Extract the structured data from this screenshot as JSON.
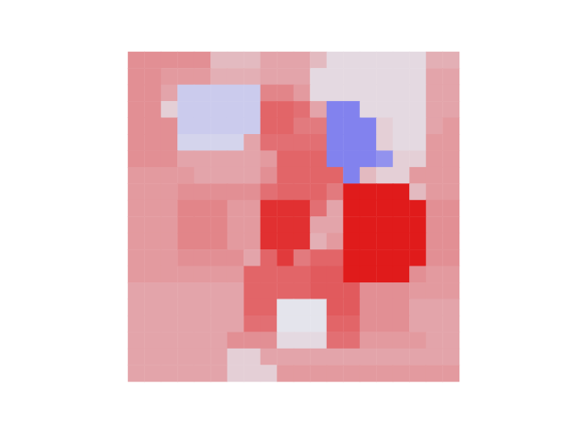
{
  "chart_data": {
    "type": "heatmap",
    "tick_labels": false,
    "grid": false,
    "zlim": [
      -1,
      1
    ],
    "cells": [
      [
        0.4,
        0.4,
        0.4,
        0.4,
        0.4,
        0.2,
        0.2,
        0.2,
        0.3,
        0.3,
        0.3,
        0.2,
        0.05,
        0.05,
        0.05,
        0.05,
        0.05,
        0.05,
        0.25,
        0.25
      ],
      [
        0.4,
        0.4,
        0.35,
        0.35,
        0.35,
        0.25,
        0.25,
        0.25,
        0.3,
        0.3,
        0.3,
        0.05,
        0.05,
        0.05,
        0.05,
        0.05,
        0.05,
        0.05,
        0.3,
        0.3
      ],
      [
        0.4,
        0.4,
        0.3,
        -0.15,
        -0.15,
        -0.15,
        -0.15,
        -0.15,
        0.45,
        0.45,
        0.35,
        0.05,
        0.05,
        0.05,
        0.05,
        0.05,
        0.05,
        0.05,
        0.3,
        0.3
      ],
      [
        0.4,
        0.4,
        0.1,
        -0.15,
        -0.15,
        -0.15,
        -0.15,
        -0.15,
        0.6,
        0.6,
        0.55,
        0.3,
        -0.6,
        -0.6,
        0.05,
        0.05,
        0.05,
        0.05,
        0.3,
        0.3
      ],
      [
        0.4,
        0.4,
        0.4,
        -0.15,
        -0.15,
        -0.15,
        -0.15,
        -0.15,
        0.6,
        0.6,
        0.5,
        0.5,
        -0.6,
        -0.6,
        -0.6,
        0.1,
        0.05,
        0.05,
        0.3,
        0.35
      ],
      [
        0.4,
        0.4,
        0.4,
        -0.1,
        -0.1,
        -0.1,
        -0.1,
        0.3,
        0.55,
        0.55,
        0.55,
        0.55,
        -0.6,
        -0.6,
        -0.6,
        0.1,
        0.05,
        0.05,
        0.35,
        0.35
      ],
      [
        0.4,
        0.4,
        0.4,
        0.3,
        0.3,
        0.3,
        0.3,
        0.3,
        0.35,
        0.6,
        0.6,
        0.6,
        -0.6,
        -0.6,
        -0.6,
        -0.5,
        0.1,
        0.1,
        0.35,
        0.35
      ],
      [
        0.35,
        0.35,
        0.35,
        0.35,
        0.3,
        0.3,
        0.3,
        0.3,
        0.4,
        0.6,
        0.6,
        0.6,
        0.6,
        -0.6,
        0.2,
        0.1,
        0.1,
        0.35,
        0.35,
        0.35
      ],
      [
        0.35,
        0.35,
        0.35,
        0.4,
        0.4,
        0.4,
        0.4,
        0.4,
        0.55,
        0.6,
        0.6,
        0.6,
        0.5,
        0.95,
        0.95,
        0.95,
        0.95,
        0.2,
        0.35,
        0.35
      ],
      [
        0.35,
        0.35,
        0.35,
        0.45,
        0.45,
        0.45,
        0.35,
        0.35,
        0.85,
        0.85,
        0.85,
        0.55,
        0.3,
        0.95,
        0.95,
        0.95,
        0.95,
        0.95,
        0.4,
        0.4
      ],
      [
        0.35,
        0.35,
        0.35,
        0.45,
        0.45,
        0.45,
        0.35,
        0.35,
        0.85,
        0.85,
        0.85,
        0.3,
        0.3,
        0.95,
        0.95,
        0.95,
        0.95,
        0.95,
        0.4,
        0.4
      ],
      [
        0.35,
        0.35,
        0.35,
        0.45,
        0.45,
        0.45,
        0.35,
        0.35,
        0.85,
        0.85,
        0.85,
        0.25,
        0.35,
        0.95,
        0.95,
        0.95,
        0.95,
        0.95,
        0.4,
        0.4
      ],
      [
        0.35,
        0.35,
        0.35,
        0.4,
        0.4,
        0.4,
        0.4,
        0.3,
        0.6,
        0.8,
        0.5,
        0.6,
        0.6,
        0.95,
        0.95,
        0.95,
        0.95,
        0.95,
        0.4,
        0.4
      ],
      [
        0.35,
        0.35,
        0.35,
        0.35,
        0.35,
        0.35,
        0.35,
        0.6,
        0.6,
        0.6,
        0.6,
        0.65,
        0.65,
        0.95,
        0.95,
        0.95,
        0.95,
        0.4,
        0.35,
        0.35
      ],
      [
        0.3,
        0.3,
        0.3,
        0.3,
        0.3,
        0.3,
        0.3,
        0.6,
        0.6,
        0.6,
        0.6,
        0.65,
        0.65,
        0.65,
        0.4,
        0.4,
        0.4,
        0.35,
        0.35,
        0.35
      ],
      [
        0.3,
        0.3,
        0.3,
        0.3,
        0.3,
        0.3,
        0.3,
        0.6,
        0.6,
        0.0,
        0.0,
        0.0,
        0.65,
        0.65,
        0.4,
        0.4,
        0.4,
        0.3,
        0.3,
        0.3
      ],
      [
        0.3,
        0.3,
        0.3,
        0.3,
        0.3,
        0.3,
        0.3,
        0.55,
        0.55,
        0.0,
        0.0,
        0.0,
        0.6,
        0.6,
        0.4,
        0.4,
        0.4,
        0.3,
        0.3,
        0.3
      ],
      [
        0.3,
        0.3,
        0.3,
        0.3,
        0.3,
        0.3,
        0.4,
        0.4,
        0.4,
        0.05,
        0.05,
        0.05,
        0.55,
        0.55,
        0.35,
        0.35,
        0.35,
        0.35,
        0.3,
        0.3
      ],
      [
        0.3,
        0.3,
        0.3,
        0.3,
        0.3,
        0.3,
        0.1,
        0.1,
        0.3,
        0.3,
        0.3,
        0.3,
        0.3,
        0.3,
        0.3,
        0.3,
        0.3,
        0.3,
        0.3,
        0.3
      ],
      [
        0.3,
        0.3,
        0.3,
        0.3,
        0.3,
        0.3,
        0.1,
        0.1,
        0.1,
        0.35,
        0.35,
        0.35,
        0.35,
        0.35,
        0.35,
        0.35,
        0.35,
        0.35,
        0.35,
        0.35
      ]
    ]
  }
}
